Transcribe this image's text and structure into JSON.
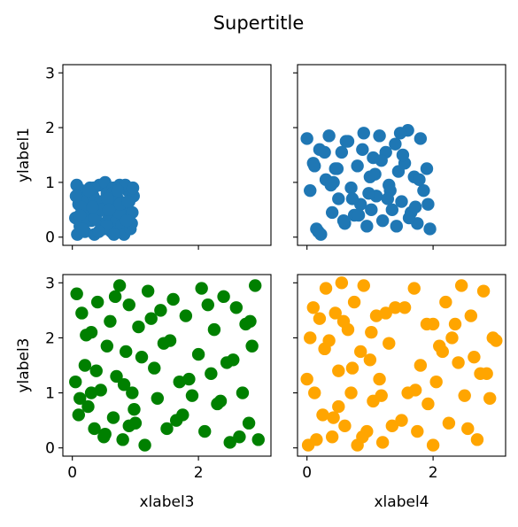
{
  "figure": {
    "suptitle": "Supertitle"
  },
  "chart_data": [
    {
      "type": "scatter",
      "position": "top-left",
      "xlabel": "",
      "ylabel": "ylabel1",
      "xlim": [
        -0.15,
        3.15
      ],
      "ylim": [
        -0.15,
        3.15
      ],
      "xticks": [
        0,
        2
      ],
      "yticks": [
        0,
        1,
        2,
        3
      ],
      "show_xticklabels": false,
      "show_yticklabels": true,
      "color": "#1f77b4",
      "x": [
        0.05,
        0.07,
        0.1,
        0.12,
        0.15,
        0.18,
        0.2,
        0.22,
        0.25,
        0.28,
        0.3,
        0.33,
        0.35,
        0.38,
        0.4,
        0.43,
        0.45,
        0.48,
        0.5,
        0.52,
        0.55,
        0.58,
        0.6,
        0.62,
        0.65,
        0.68,
        0.7,
        0.72,
        0.75,
        0.78,
        0.8,
        0.82,
        0.85,
        0.88,
        0.9,
        0.92,
        0.95,
        0.97,
        0.08,
        0.14,
        0.24,
        0.34,
        0.44,
        0.54,
        0.64,
        0.74,
        0.84,
        0.94,
        0.06,
        0.16,
        0.26,
        0.36,
        0.46,
        0.56,
        0.66,
        0.76,
        0.86,
        0.96,
        0.12,
        0.42,
        0.58,
        0.72,
        0.32,
        0.88
      ],
      "y": [
        0.35,
        0.95,
        0.6,
        0.2,
        0.85,
        0.4,
        0.1,
        0.7,
        0.5,
        0.9,
        0.3,
        0.75,
        0.05,
        0.55,
        0.45,
        0.95,
        0.25,
        0.65,
        0.15,
        1.0,
        0.8,
        0.35,
        0.6,
        0.1,
        0.9,
        0.5,
        0.3,
        0.7,
        0.95,
        0.2,
        0.55,
        0.05,
        0.4,
        0.85,
        0.65,
        0.15,
        0.45,
        0.75,
        0.05,
        0.55,
        0.3,
        0.9,
        0.65,
        0.2,
        0.8,
        0.45,
        0.95,
        0.25,
        0.75,
        0.15,
        0.85,
        0.35,
        0.5,
        0.7,
        0.05,
        0.6,
        0.3,
        0.9,
        0.4,
        0.1,
        0.5,
        0.85,
        0.55,
        0.65
      ]
    },
    {
      "type": "scatter",
      "position": "top-right",
      "xlabel": "",
      "ylabel": "",
      "xlim": [
        -0.15,
        3.15
      ],
      "ylim": [
        -0.15,
        3.15
      ],
      "xticks": [
        0,
        2
      ],
      "yticks": [
        0,
        1,
        2,
        3
      ],
      "show_xticklabels": false,
      "show_yticklabels": false,
      "color": "#1f77b4",
      "x": [
        0.0,
        0.05,
        0.1,
        0.15,
        0.2,
        0.22,
        0.3,
        0.35,
        0.4,
        0.45,
        0.5,
        0.55,
        0.6,
        0.65,
        0.7,
        0.75,
        0.8,
        0.85,
        0.9,
        0.95,
        1.0,
        1.05,
        1.1,
        1.15,
        1.2,
        1.25,
        1.3,
        1.35,
        1.4,
        1.45,
        1.5,
        1.55,
        1.6,
        1.65,
        1.7,
        1.75,
        1.8,
        1.85,
        1.9,
        1.95,
        0.12,
        0.28,
        0.42,
        0.58,
        0.72,
        0.88,
        1.02,
        1.18,
        1.32,
        1.48,
        1.62,
        1.78,
        1.92,
        0.18,
        0.38,
        0.62,
        0.82,
        1.08,
        1.28,
        1.52,
        1.72,
        0.48,
        0.98,
        1.42
      ],
      "y": [
        1.8,
        0.85,
        1.35,
        0.15,
        1.6,
        0.05,
        1.05,
        1.85,
        0.45,
        1.25,
        0.7,
        1.55,
        0.25,
        1.75,
        0.9,
        0.4,
        1.3,
        0.6,
        1.9,
        0.2,
        1.1,
        1.45,
        0.75,
        1.85,
        0.3,
        1.55,
        0.95,
        0.5,
        1.7,
        1.2,
        0.65,
        1.35,
        1.95,
        0.45,
        1.1,
        0.25,
        1.8,
        0.85,
        1.25,
        0.15,
        1.3,
        1.55,
        1.0,
        0.3,
        0.7,
        1.6,
        0.5,
        1.4,
        0.85,
        1.9,
        0.35,
        1.05,
        0.6,
        0.1,
        0.95,
        1.75,
        0.4,
        1.15,
        0.7,
        1.5,
        0.55,
        1.25,
        0.8,
        0.2
      ]
    },
    {
      "type": "scatter",
      "position": "bottom-left",
      "xlabel": "xlabel3",
      "ylabel": "ylabel3",
      "xlim": [
        -0.15,
        3.15
      ],
      "ylim": [
        -0.15,
        3.15
      ],
      "xticks": [
        0,
        2
      ],
      "yticks": [
        0,
        1,
        2,
        3
      ],
      "show_xticklabels": true,
      "show_yticklabels": true,
      "color": "#008000",
      "x": [
        0.05,
        0.07,
        0.12,
        0.15,
        0.2,
        0.25,
        0.3,
        0.35,
        0.4,
        0.45,
        0.5,
        0.55,
        0.6,
        0.65,
        0.7,
        0.75,
        0.8,
        0.85,
        0.9,
        0.95,
        1.0,
        1.05,
        1.1,
        1.15,
        1.2,
        1.3,
        1.35,
        1.4,
        1.5,
        1.55,
        1.6,
        1.7,
        1.75,
        1.8,
        1.9,
        2.0,
        2.05,
        2.1,
        2.2,
        2.25,
        2.3,
        2.4,
        2.45,
        2.5,
        2.6,
        2.7,
        2.75,
        2.8,
        2.85,
        2.9,
        2.95,
        0.1,
        0.22,
        0.38,
        0.52,
        0.68,
        0.82,
        0.98,
        1.25,
        1.45,
        1.65,
        1.85,
        2.15,
        2.35,
        2.55,
        2.65,
        2.82,
        0.3,
        0.9
      ],
      "y": [
        1.2,
        2.8,
        0.9,
        2.45,
        1.5,
        0.75,
        2.1,
        0.35,
        2.65,
        1.05,
        0.2,
        1.85,
        2.3,
        0.55,
        1.3,
        2.95,
        0.15,
        1.75,
        2.6,
        1.0,
        0.45,
        2.2,
        1.65,
        0.05,
        2.85,
        1.45,
        0.9,
        2.5,
        0.35,
        1.95,
        2.7,
        1.2,
        0.6,
        2.4,
        0.95,
        1.7,
        2.9,
        0.3,
        1.35,
        2.15,
        0.8,
        2.75,
        1.55,
        0.1,
        2.55,
        1.0,
        2.25,
        0.45,
        1.85,
        2.95,
        0.15,
        0.6,
        2.05,
        1.4,
        0.25,
        2.75,
        1.15,
        0.7,
        2.35,
        1.9,
        0.5,
        1.25,
        2.6,
        0.85,
        1.6,
        0.2,
        2.3,
        1.0,
        0.4
      ]
    },
    {
      "type": "scatter",
      "position": "bottom-right",
      "xlabel": "xlabel4",
      "ylabel": "",
      "xlim": [
        -0.15,
        3.15
      ],
      "ylim": [
        -0.15,
        3.15
      ],
      "xticks": [
        0,
        2
      ],
      "yticks": [
        0,
        1,
        2,
        3
      ],
      "show_xticklabels": true,
      "show_yticklabels": false,
      "color": "#ffa500",
      "x": [
        0.0,
        0.02,
        0.1,
        0.15,
        0.2,
        0.25,
        0.3,
        0.35,
        0.4,
        0.45,
        0.5,
        0.55,
        0.6,
        0.65,
        0.7,
        0.75,
        0.8,
        0.85,
        0.9,
        0.95,
        1.0,
        1.05,
        1.1,
        1.15,
        1.2,
        1.3,
        1.4,
        1.5,
        1.6,
        1.7,
        1.75,
        1.8,
        1.9,
        2.0,
        2.05,
        2.1,
        2.2,
        2.25,
        2.3,
        2.4,
        2.45,
        2.5,
        2.6,
        2.7,
        2.75,
        2.8,
        2.9,
        2.95,
        3.0,
        0.05,
        0.12,
        0.28,
        0.42,
        0.58,
        0.72,
        0.88,
        1.02,
        1.18,
        1.35,
        1.55,
        1.72,
        1.92,
        2.15,
        2.35,
        2.55,
        2.65,
        2.85,
        0.5,
        1.25,
        2.0
      ],
      "y": [
        1.25,
        0.05,
        2.55,
        0.15,
        2.35,
        0.6,
        2.9,
        1.95,
        0.2,
        2.45,
        1.4,
        3.0,
        0.4,
        2.15,
        1.0,
        2.65,
        0.05,
        1.75,
        2.95,
        0.3,
        1.6,
        0.85,
        2.4,
        1.25,
        0.1,
        1.9,
        2.55,
        0.5,
        1.0,
        2.9,
        0.3,
        1.5,
        2.25,
        0.05,
        1.2,
        1.85,
        2.65,
        0.45,
        2.0,
        1.55,
        2.95,
        0.95,
        2.4,
        0.15,
        1.35,
        2.85,
        0.9,
        2.0,
        1.95,
        2.0,
        1.0,
        1.8,
        0.55,
        2.3,
        1.45,
        0.2,
        2.1,
        0.95,
        0.4,
        2.55,
        1.05,
        0.8,
        1.75,
        2.25,
        0.35,
        1.65,
        1.35,
        0.75,
        2.45,
        2.25
      ]
    }
  ]
}
